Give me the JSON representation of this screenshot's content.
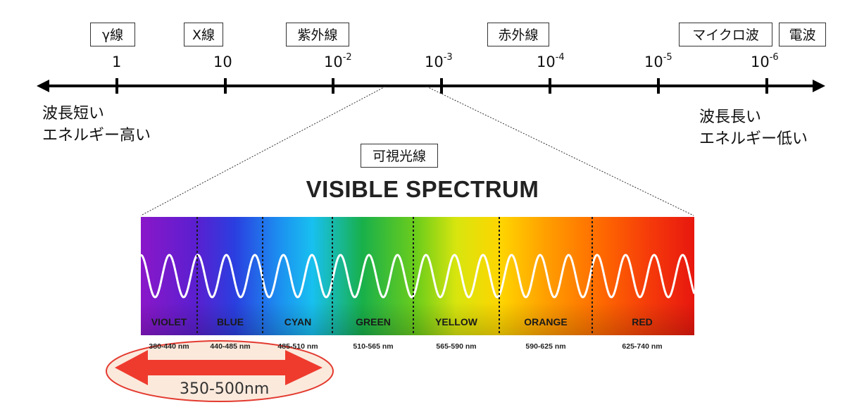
{
  "bands": [
    {
      "label": "γ線"
    },
    {
      "label": "X線"
    },
    {
      "label": "紫外線"
    },
    {
      "label": "赤外線"
    },
    {
      "label": "マイクロ波"
    },
    {
      "label": "電波"
    }
  ],
  "ticks": [
    {
      "base": "1",
      "exp": ""
    },
    {
      "base": "10",
      "exp": ""
    },
    {
      "base": "10",
      "exp": "-2"
    },
    {
      "base": "10",
      "exp": "-3"
    },
    {
      "base": "10",
      "exp": "-4"
    },
    {
      "base": "10",
      "exp": "-5"
    },
    {
      "base": "10",
      "exp": "-6"
    }
  ],
  "left_note": {
    "line1": "波長短い",
    "line2": "エネルギー高い"
  },
  "right_note": {
    "line1": "波長長い",
    "line2": "エネルギー低い"
  },
  "visible_label": "可視光線",
  "spectrum_title": "VISIBLE SPECTRUM",
  "segments": [
    {
      "name": "VIOLET",
      "range": "380-440 nm"
    },
    {
      "name": "BLUE",
      "range": "440-485 nm"
    },
    {
      "name": "CYAN",
      "range": "485-510 nm"
    },
    {
      "name": "GREEN",
      "range": "510-565 nm"
    },
    {
      "name": "YELLOW",
      "range": "565-590 nm"
    },
    {
      "name": "ORANGE",
      "range": "590-625 nm"
    },
    {
      "name": "RED",
      "range": "625-740 nm"
    }
  ],
  "highlight": {
    "label": "350-500nm",
    "arrow_color": "#ee3b2e",
    "fill_color": "#fbe9dc"
  }
}
